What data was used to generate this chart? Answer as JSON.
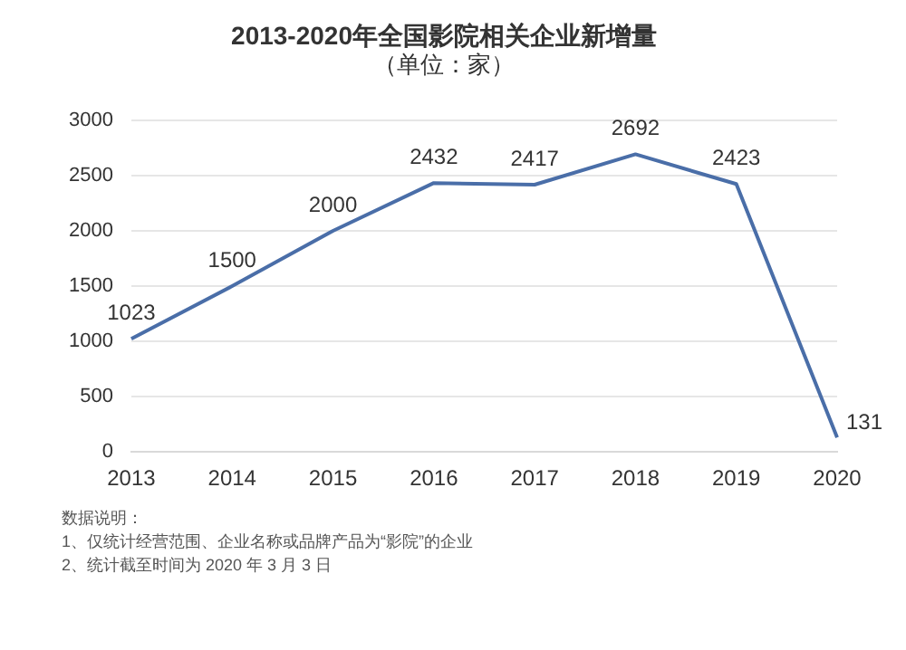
{
  "chart_data": {
    "type": "line",
    "title": "2013-2020年全国影院相关企业新增量",
    "subtitle": "（单位：家）",
    "categories": [
      "2013",
      "2014",
      "2015",
      "2016",
      "2017",
      "2018",
      "2019",
      "2020"
    ],
    "series": [
      {
        "color": "#4a6ea8",
        "values": [
          1023,
          1500,
          2000,
          2432,
          2417,
          2692,
          2423,
          131
        ]
      }
    ],
    "ylim": [
      0,
      3000
    ],
    "yticks": [
      0,
      500,
      1000,
      1500,
      2000,
      2500,
      3000
    ],
    "grid": "y",
    "legend": false,
    "marker": "none",
    "line_style": "solid",
    "data_labels": true,
    "annotations": [
      "数据说明：",
      "1、仅统计经营范围、企业名称或品牌产品为“影院”的企业",
      "2、统计截至时间为 2020 年 3 月 3 日"
    ]
  }
}
